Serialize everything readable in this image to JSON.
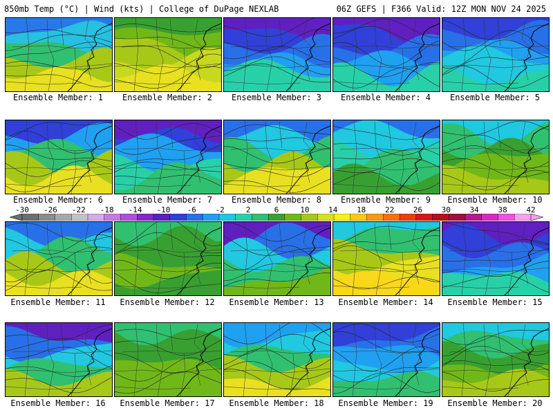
{
  "header": {
    "left": "850mb Temp (°C) | Wind (kts) | College of DuPage NEXLAB",
    "right": "06Z GEFS | F366 Valid: 12Z MON NOV 24 2025"
  },
  "colorbar": {
    "labels": [
      "-30",
      "-26",
      "-22",
      "-18",
      "-14",
      "-10",
      "-6",
      "-2",
      "2",
      "6",
      "10",
      "14",
      "18",
      "22",
      "26",
      "30",
      "34",
      "38",
      "42"
    ],
    "colors": [
      "#6e6e6e",
      "#8c8c8c",
      "#a8a8a8",
      "#c4c4c4",
      "#d8a8e8",
      "#c878e0",
      "#b050d8",
      "#8828c8",
      "#5a20c0",
      "#3040d8",
      "#2870e8",
      "#20a0f0",
      "#20c8e0",
      "#28d0a8",
      "#30c070",
      "#38a030",
      "#70b818",
      "#a8c818",
      "#d8e020",
      "#f8f018",
      "#f8c818",
      "#f89818",
      "#f87010",
      "#e84010",
      "#d81818",
      "#b81018",
      "#a01040",
      "#b81890",
      "#d828c0",
      "#f050e0",
      "#f8a0f0"
    ]
  },
  "panels": [
    {
      "caption": "Ensemble Member: 1",
      "palette": [
        "#2878e8",
        "#28c0e0",
        "#30c070",
        "#a8c818",
        "#e8e020"
      ]
    },
    {
      "caption": "Ensemble Member: 2",
      "palette": [
        "#38a030",
        "#70b818",
        "#a8c818",
        "#c8d820",
        "#e8e020"
      ]
    },
    {
      "caption": "Ensemble Member: 3",
      "palette": [
        "#6020c0",
        "#3040d8",
        "#2870e8",
        "#20a0f0",
        "#28d0a8"
      ]
    },
    {
      "caption": "Ensemble Member: 4",
      "palette": [
        "#6020c0",
        "#3040d8",
        "#2870e8",
        "#20a0f0",
        "#28d0a8"
      ]
    },
    {
      "caption": "Ensemble Member: 5",
      "palette": [
        "#3040d8",
        "#2870e8",
        "#20a0f0",
        "#20c8e0",
        "#28d0a8"
      ]
    },
    {
      "caption": "Ensemble Member: 6",
      "palette": [
        "#3040d8",
        "#20a0f0",
        "#30c070",
        "#a8c818",
        "#e8e020"
      ]
    },
    {
      "caption": "Ensemble Member: 7",
      "palette": [
        "#6020c0",
        "#3040d8",
        "#20a0f0",
        "#28d0a8",
        "#30c070"
      ]
    },
    {
      "caption": "Ensemble Member: 8",
      "palette": [
        "#2870e8",
        "#20c8e0",
        "#30c070",
        "#a8c818",
        "#e8e020"
      ]
    },
    {
      "caption": "Ensemble Member: 9",
      "palette": [
        "#2870e8",
        "#20c8e0",
        "#28d0a8",
        "#30c070",
        "#38a030"
      ]
    },
    {
      "caption": "Ensemble Member: 10",
      "palette": [
        "#20c8e0",
        "#30c070",
        "#38a030",
        "#70b818",
        "#a8c818"
      ]
    },
    {
      "caption": "Ensemble Member: 11",
      "palette": [
        "#2870e8",
        "#20c8e0",
        "#30c070",
        "#a8c818",
        "#e8e020"
      ]
    },
    {
      "caption": "Ensemble Member: 12",
      "palette": [
        "#30c070",
        "#38a030",
        "#38a030",
        "#70b818",
        "#38a030"
      ]
    },
    {
      "caption": "Ensemble Member: 13",
      "palette": [
        "#6020c0",
        "#2870e8",
        "#20c8e0",
        "#30c070",
        "#70b818"
      ]
    },
    {
      "caption": "Ensemble Member: 14",
      "palette": [
        "#20c8e0",
        "#30c070",
        "#a8c818",
        "#e8e020",
        "#f8d818"
      ]
    },
    {
      "caption": "Ensemble Member: 15",
      "palette": [
        "#6020c0",
        "#3040d8",
        "#2870e8",
        "#20a0f0",
        "#28d0a8"
      ]
    },
    {
      "caption": "Ensemble Member: 16",
      "palette": [
        "#6020c0",
        "#2870e8",
        "#20c8e0",
        "#30c070",
        "#a8c818"
      ]
    },
    {
      "caption": "Ensemble Member: 17",
      "palette": [
        "#30c070",
        "#38a030",
        "#38a030",
        "#70b818",
        "#70b818"
      ]
    },
    {
      "caption": "Ensemble Member: 18",
      "palette": [
        "#20a0f0",
        "#20c8e0",
        "#30c070",
        "#a8c818",
        "#e8e020"
      ]
    },
    {
      "caption": "Ensemble Member: 19",
      "palette": [
        "#3040d8",
        "#2870e8",
        "#20a0f0",
        "#20c8e0",
        "#30c070"
      ]
    },
    {
      "caption": "Ensemble Member: 20",
      "palette": [
        "#20c8e0",
        "#30c070",
        "#38a030",
        "#70b818",
        "#a8c818"
      ]
    }
  ]
}
